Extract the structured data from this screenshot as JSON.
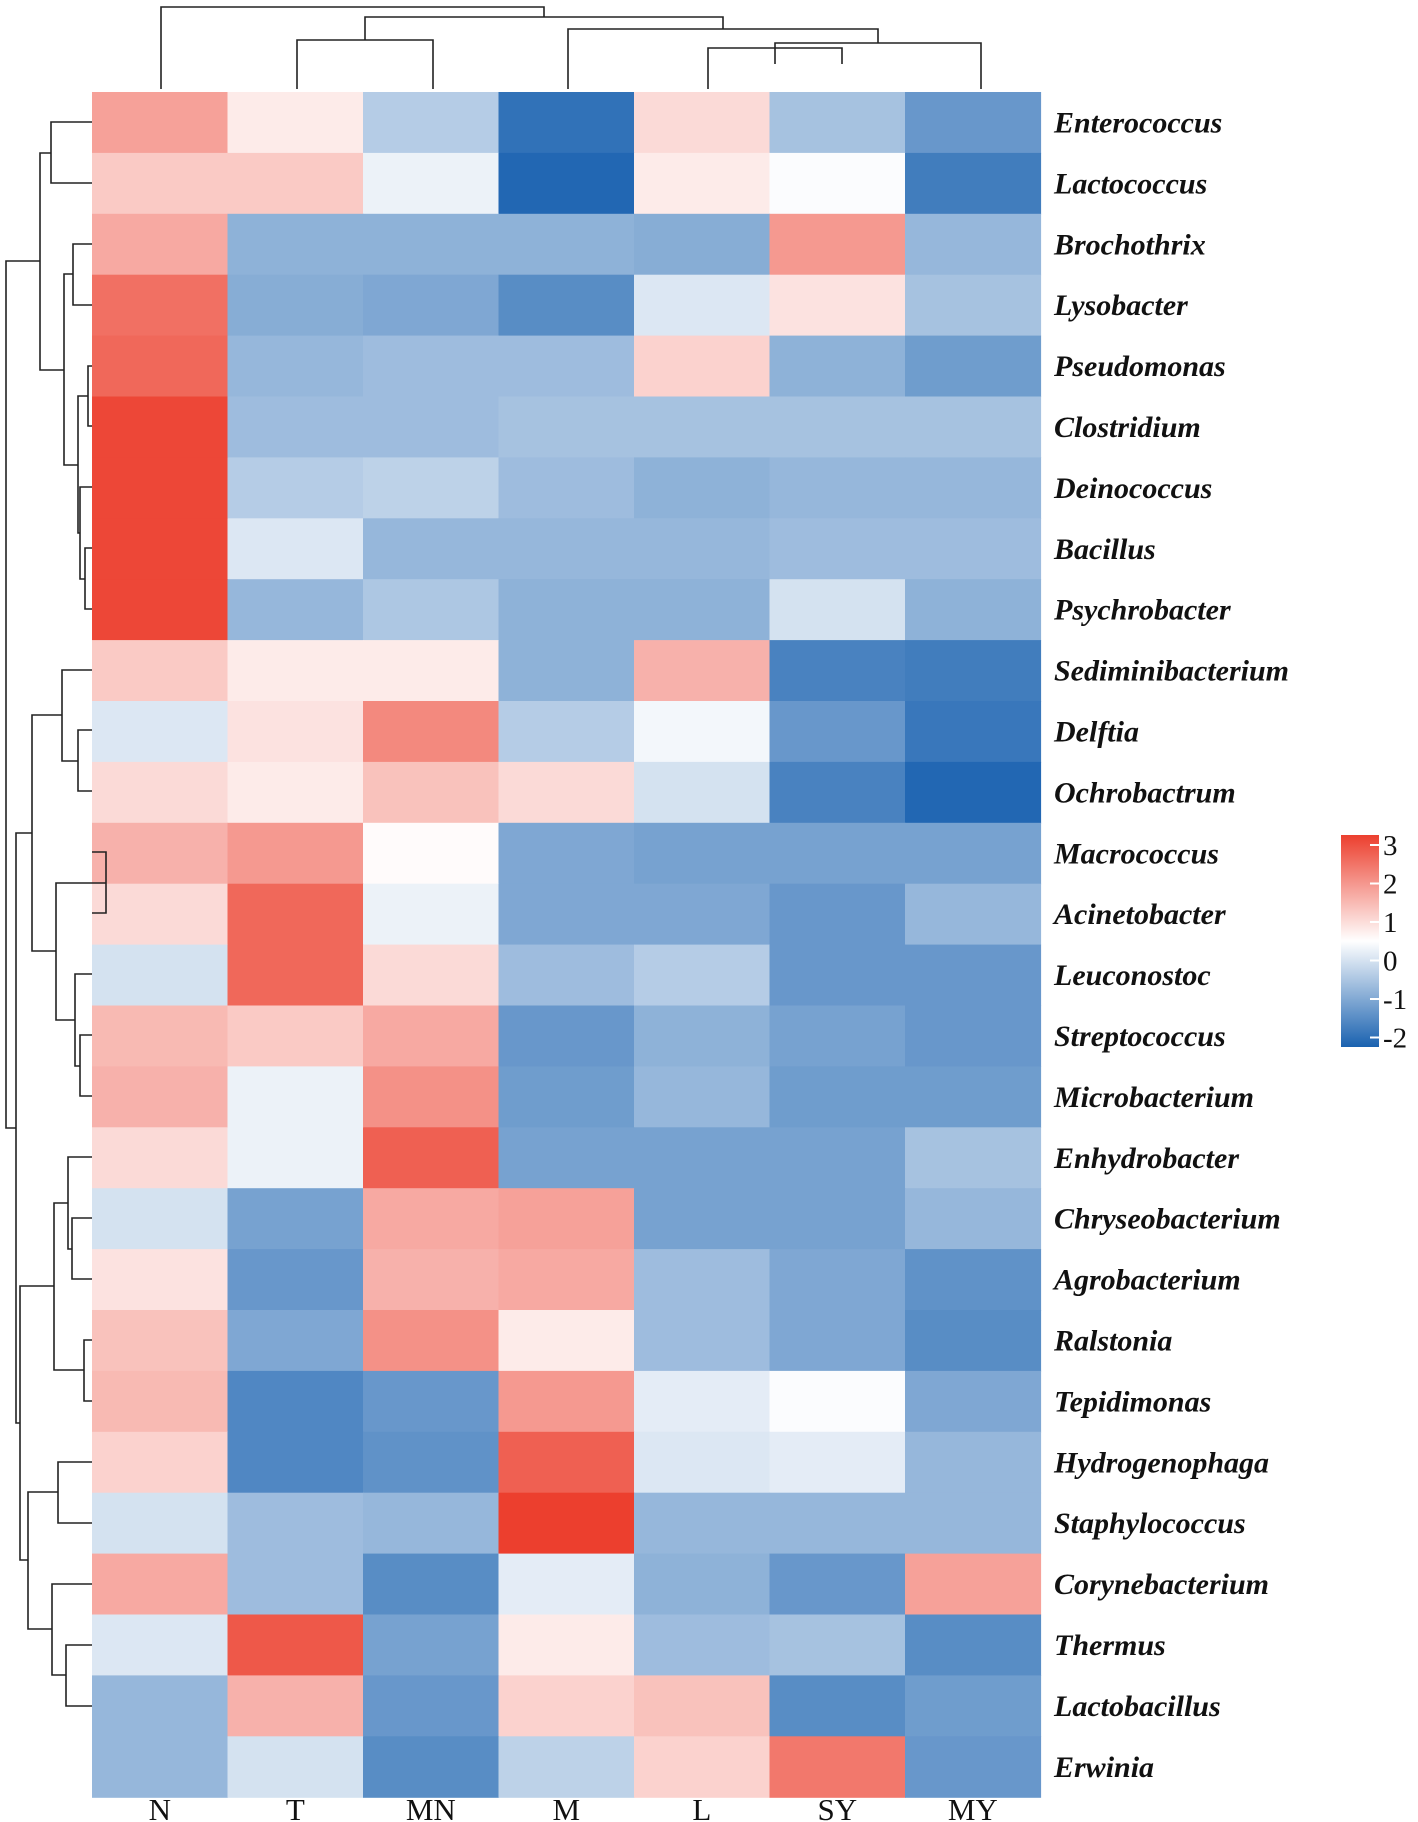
{
  "chart_data": {
    "type": "heatmap",
    "title": "",
    "columns": [
      "N",
      "T",
      "MN",
      "M",
      "L",
      "SY",
      "MY"
    ],
    "rows": [
      "Enterococcus",
      "Lactococcus",
      "Brochothrix",
      "Lysobacter",
      "Pseudomonas",
      "Clostridium",
      "Deinococcus",
      "Bacillus",
      "Psychrobacter",
      "Sediminibacterium",
      "Delftia",
      "Ochrobactrum",
      "Macrococcus",
      "Acinetobacter",
      "Leuconostoc",
      "Streptococcus",
      "Microbacterium",
      "Enhydrobacter",
      "Chryseobacterium",
      "Agrobacterium",
      "Ralstonia",
      "Tepidimonas",
      "Hydrogenophaga",
      "Staphylococcus",
      "Corynebacterium",
      "Thermus",
      "Lactobacillus",
      "Erwinia"
    ],
    "values": [
      [
        1.8,
        0.9,
        -0.3,
        -2.0,
        1.1,
        -0.5,
        -1.3
      ],
      [
        1.3,
        1.3,
        0.4,
        -2.2,
        0.9,
        0.6,
        -1.8
      ],
      [
        1.7,
        -0.8,
        -0.8,
        -0.8,
        -0.9,
        1.9,
        -0.7
      ],
      [
        2.4,
        -0.9,
        -1.0,
        -1.5,
        0.2,
        1.0,
        -0.5
      ],
      [
        2.5,
        -0.7,
        -0.6,
        -0.6,
        1.2,
        -0.8,
        -1.2
      ],
      [
        2.9,
        -0.6,
        -0.6,
        -0.5,
        -0.5,
        -0.5,
        -0.5
      ],
      [
        2.9,
        -0.3,
        -0.2,
        -0.6,
        -0.8,
        -0.7,
        -0.7
      ],
      [
        2.9,
        0.2,
        -0.7,
        -0.7,
        -0.7,
        -0.6,
        -0.6
      ],
      [
        2.9,
        -0.7,
        -0.4,
        -0.8,
        -0.8,
        0.1,
        -0.8
      ],
      [
        1.3,
        0.9,
        0.9,
        -0.8,
        1.6,
        -1.7,
        -1.8
      ],
      [
        0.2,
        1.0,
        2.1,
        -0.3,
        0.5,
        -1.3,
        -1.9
      ],
      [
        1.1,
        0.9,
        1.4,
        1.1,
        0.1,
        -1.7,
        -2.2
      ],
      [
        1.6,
        1.9,
        0.7,
        -1.0,
        -1.1,
        -1.1,
        -1.1
      ],
      [
        1.1,
        2.5,
        0.4,
        -1.0,
        -1.0,
        -1.3,
        -0.7
      ],
      [
        0.1,
        2.5,
        1.1,
        -0.6,
        -0.3,
        -1.3,
        -1.3
      ],
      [
        1.5,
        1.3,
        1.7,
        -1.3,
        -0.8,
        -1.1,
        -1.3
      ],
      [
        1.6,
        0.4,
        2.0,
        -1.2,
        -0.7,
        -1.2,
        -1.2
      ],
      [
        1.1,
        0.4,
        2.6,
        -1.1,
        -1.1,
        -1.1,
        -0.5
      ],
      [
        0.1,
        -1.1,
        1.7,
        1.8,
        -1.1,
        -1.1,
        -0.7
      ],
      [
        1.0,
        -1.3,
        1.6,
        1.7,
        -0.6,
        -1.0,
        -1.4
      ],
      [
        1.4,
        -1.0,
        2.0,
        0.9,
        -0.6,
        -1.0,
        -1.5
      ],
      [
        1.5,
        -1.6,
        -1.3,
        1.9,
        0.3,
        0.6,
        -1.0
      ],
      [
        1.2,
        -1.6,
        -1.4,
        2.6,
        0.2,
        0.3,
        -0.7
      ],
      [
        0.1,
        -0.6,
        -0.7,
        3.0,
        -0.7,
        -0.7,
        -0.7
      ],
      [
        1.7,
        -0.6,
        -1.5,
        0.3,
        -0.8,
        -1.3,
        1.8
      ],
      [
        0.2,
        2.7,
        -1.1,
        0.9,
        -0.6,
        -0.5,
        -1.5
      ],
      [
        -0.7,
        1.6,
        -1.3,
        1.2,
        1.4,
        -1.5,
        -1.2
      ],
      [
        -0.7,
        0.1,
        -1.5,
        -0.2,
        1.2,
        2.3,
        -1.3
      ]
    ],
    "color_scale": {
      "min": -2.3,
      "max": 3.0,
      "low_color": "#1a62b0",
      "mid_color": "#ffffff",
      "high_color": "#ec3f2e",
      "mid_value": 0.65
    },
    "legend": {
      "placement": "right",
      "ticks": [
        3,
        2,
        1,
        0,
        -1,
        -2
      ],
      "tick_labels": [
        "3",
        "2",
        "1",
        "0",
        "-1",
        "-2"
      ]
    },
    "xlabel": "",
    "ylabel": ""
  }
}
